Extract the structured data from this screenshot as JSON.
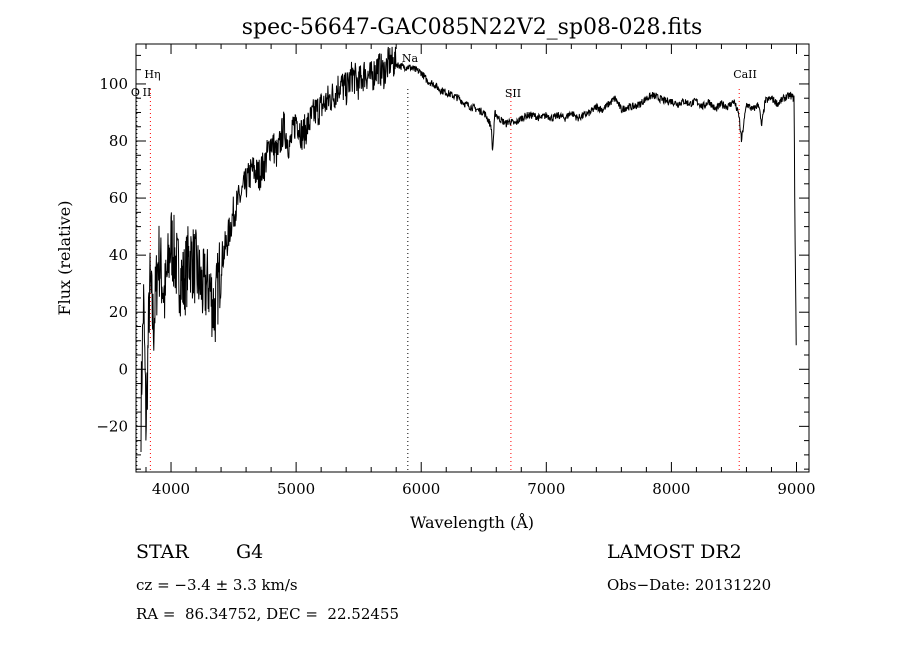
{
  "chart_data": {
    "type": "line",
    "title": "spec-56647-GAC085N22V2_sp08-028.fits",
    "xlabel": "Wavelength (Å)",
    "ylabel": "Flux (relative)",
    "xlim": [
      3720,
      9100
    ],
    "ylim": [
      -36,
      114
    ],
    "x_ticks": [
      4000,
      5000,
      6000,
      7000,
      8000,
      9000
    ],
    "y_ticks": [
      -20,
      0,
      20,
      40,
      60,
      80,
      100
    ],
    "x": [
      3760,
      3780,
      3800,
      3830,
      3860,
      3900,
      3950,
      4000,
      4050,
      4100,
      4150,
      4200,
      4250,
      4300,
      4350,
      4400,
      4450,
      4500,
      4550,
      4600,
      4650,
      4700,
      4750,
      4800,
      4850,
      4900,
      4950,
      5000,
      5050,
      5100,
      5150,
      5200,
      5250,
      5300,
      5350,
      5400,
      5450,
      5500,
      5550,
      5600,
      5650,
      5700,
      5750,
      5800,
      5850,
      5900,
      5950,
      6000,
      6050,
      6100,
      6150,
      6200,
      6250,
      6300,
      6350,
      6400,
      6450,
      6500,
      6530,
      6560,
      6570,
      6590,
      6620,
      6650,
      6680,
      6700,
      6750,
      6800,
      6850,
      6900,
      6950,
      7000,
      7050,
      7100,
      7150,
      7200,
      7250,
      7300,
      7350,
      7400,
      7450,
      7500,
      7550,
      7600,
      7650,
      7700,
      7750,
      7800,
      7850,
      7900,
      7950,
      8000,
      8050,
      8100,
      8150,
      8200,
      8250,
      8300,
      8350,
      8400,
      8450,
      8500,
      8540,
      8560,
      8600,
      8650,
      8700,
      8720,
      8750,
      8800,
      8850,
      8900,
      8950,
      8980,
      8990,
      9000
    ],
    "y": [
      -15,
      25,
      -20,
      30,
      15,
      40,
      25,
      45,
      35,
      30,
      40,
      35,
      28,
      30,
      20,
      38,
      45,
      55,
      60,
      65,
      70,
      68,
      72,
      80,
      75,
      85,
      78,
      88,
      82,
      86,
      90,
      92,
      94,
      96,
      100,
      98,
      103,
      100,
      104,
      102,
      106,
      104,
      108,
      107,
      106,
      106,
      105,
      104,
      101,
      100,
      98,
      97,
      96,
      95,
      93,
      92,
      91,
      90,
      88,
      85,
      76,
      90,
      88,
      87,
      86,
      87,
      86,
      88,
      89,
      89,
      88,
      89,
      88,
      89,
      88,
      90,
      88,
      89,
      90,
      92,
      91,
      93,
      95,
      91,
      92,
      92,
      93,
      95,
      96,
      95,
      94,
      94,
      93,
      94,
      93,
      94,
      92,
      94,
      91,
      93,
      92,
      94,
      89,
      80,
      93,
      91,
      93,
      85,
      94,
      95,
      93,
      95,
      96,
      95,
      40,
      0
    ],
    "line_markers": [
      {
        "label": "O II",
        "x": 3727,
        "color": "#000000"
      },
      {
        "label": "Hη",
        "x": 3835,
        "color": "#ff0000"
      },
      {
        "label": "Na",
        "x": 5893,
        "color": "#000000"
      },
      {
        "label": "SII",
        "x": 6717,
        "color": "#ff0000"
      },
      {
        "label": "CaII",
        "x": 8542,
        "color": "#ff0000"
      }
    ],
    "grid": false
  },
  "info": {
    "object_type": "STAR",
    "subclass": "G4",
    "survey": "LAMOST DR2",
    "redshift_text": "cz = −3.4 ± 3.3 km/s",
    "obs_date": "Obs−Date: 20131220",
    "coords": "RA =  86.34752, DEC =  22.52455"
  }
}
